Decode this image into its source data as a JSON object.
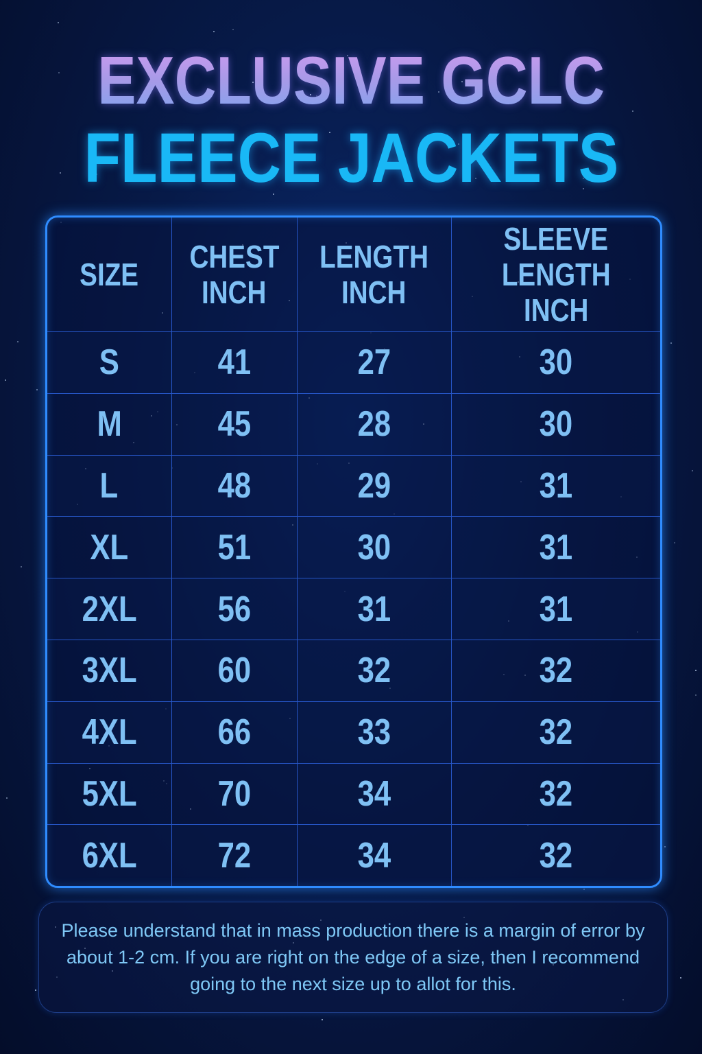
{
  "title": {
    "line1": "EXCLUSIVE GCLC",
    "line2": "FLEECE JACKETS"
  },
  "colors": {
    "title_line1": "#a79ae8",
    "title_line2": "#19b8f6",
    "cell_text": "#7fc0f4",
    "border": "#2f8cff",
    "background": "#071a48"
  },
  "table": {
    "headers": [
      {
        "line1": "SIZE",
        "line2": ""
      },
      {
        "line1": "CHEST",
        "line2": "INCH"
      },
      {
        "line1": "LENGTH",
        "line2": "INCH"
      },
      {
        "line1": "SLEEVE",
        "line2": "LENGTH INCH"
      }
    ],
    "rows": [
      [
        "S",
        "41",
        "27",
        "30"
      ],
      [
        "M",
        "45",
        "28",
        "30"
      ],
      [
        "L",
        "48",
        "29",
        "31"
      ],
      [
        "XL",
        "51",
        "30",
        "31"
      ],
      [
        "2XL",
        "56",
        "31",
        "31"
      ],
      [
        "3XL",
        "60",
        "32",
        "32"
      ],
      [
        "4XL",
        "66",
        "33",
        "32"
      ],
      [
        "5XL",
        "70",
        "34",
        "32"
      ],
      [
        "6XL",
        "72",
        "34",
        "32"
      ]
    ]
  },
  "note": {
    "text": "Please understand that in mass production there is a margin of error by about 1-2 cm. If you are right on the edge of a size, then I recommend going to the next size up to allot for this."
  }
}
